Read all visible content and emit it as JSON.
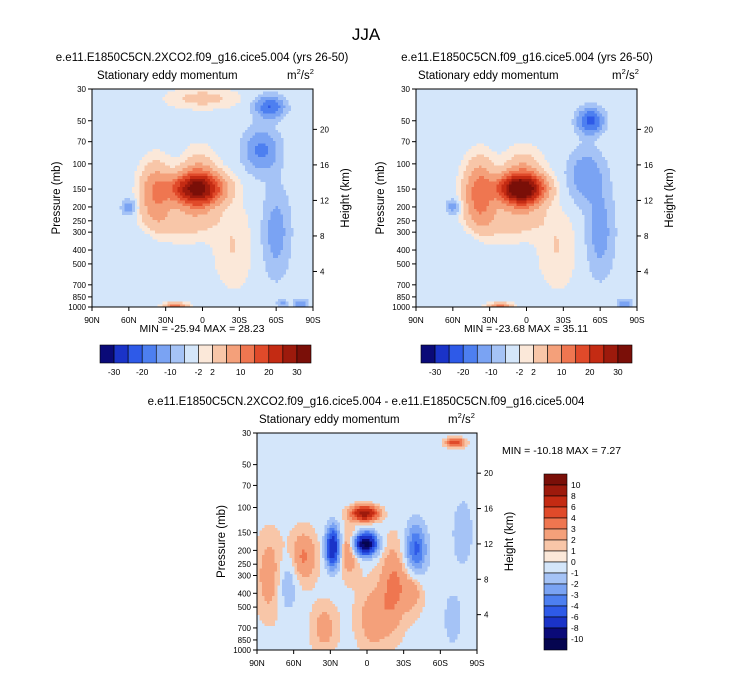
{
  "main_title": "JJA",
  "colors": {
    "field_bg": "#d4e6fa",
    "frame": "#000000"
  },
  "panels": [
    {
      "id": "p1",
      "title": "e.e11.E1850C5CN.2XCO2.f09_g16.cice5.004 (yrs 26-50)",
      "subtitle": "Stationary eddy momentum",
      "units_base": "m",
      "units_sup1": "2",
      "units_mid": "/s",
      "units_sup2": "2",
      "stats": "MIN = -25.94  MAX =  28.23"
    },
    {
      "id": "p2",
      "title": "e.e11.E1850C5CN.f09_g16.cice5.004 (yrs 26-50)",
      "subtitle": "Stationary eddy momentum",
      "units_base": "m",
      "units_sup1": "2",
      "units_mid": "/s",
      "units_sup2": "2",
      "stats": "MIN = -23.68  MAX =  35.11"
    },
    {
      "id": "p3",
      "title": "e.e11.E1850C5CN.2XCO2.f09_g16.cice5.004 - e.e11.E1850C5CN.f09_g16.cice5.004",
      "subtitle": "Stationary eddy momentum",
      "units_base": "m",
      "units_sup1": "2",
      "units_mid": "/s",
      "units_sup2": "2",
      "stats": "MIN = -10.18  MAX =   7.27"
    }
  ],
  "chart_data": {
    "type": "heatmap",
    "x_ticks": [
      "90N",
      "60N",
      "30N",
      "0",
      "30S",
      "60S",
      "90S"
    ],
    "x_tick_values": [
      90,
      60,
      30,
      0,
      -30,
      -60,
      -90
    ],
    "y_label": "Pressure (mb)",
    "y_ticks": [
      "30",
      "50",
      "70",
      "100",
      "150",
      "200",
      "250",
      "300",
      "400",
      "500",
      "700",
      "850",
      "1000"
    ],
    "y_tick_values": [
      30,
      50,
      70,
      100,
      150,
      200,
      250,
      300,
      400,
      500,
      700,
      850,
      1000
    ],
    "y2_label": "Height (km)",
    "y2_ticks": [
      "20",
      "16",
      "12",
      "8",
      "4"
    ],
    "y2_tick_values": [
      20,
      16,
      12,
      8,
      4
    ],
    "scale_height_km": 7,
    "colorbar_horizontal": {
      "labels": [
        "-30",
        "-20",
        "-10",
        "-2",
        "2",
        "10",
        "20",
        "30"
      ],
      "colors": [
        "#0a0a78",
        "#1a33c8",
        "#2e5ae8",
        "#4d7ff0",
        "#7aa3f3",
        "#a5c3f6",
        "#d4e6fa",
        "#fbe8d9",
        "#f8c6a8",
        "#f4a07a",
        "#ef7650",
        "#e04a2a",
        "#c42b13",
        "#9d1a0c",
        "#7a0f08"
      ]
    },
    "colorbar_vertical": {
      "labels": [
        "10",
        "8",
        "6",
        "4",
        "3",
        "2",
        "1",
        "0",
        "-1",
        "-2",
        "-3",
        "-4",
        "-6",
        "-8",
        "-10"
      ],
      "colors": [
        "#7a0f08",
        "#9d1a0c",
        "#c42b13",
        "#e04a2a",
        "#ef7650",
        "#f4a07a",
        "#f8c6a8",
        "#fbe8d9",
        "#d4e6fa",
        "#a5c3f6",
        "#7aa3f3",
        "#4d7ff0",
        "#2e5ae8",
        "#1a33c8",
        "#0a0a78",
        "#050550"
      ]
    },
    "features": {
      "p1": [
        {
          "lat": 5,
          "p": 150,
          "amp": 28,
          "wlat": 14,
          "wlogp": 0.16
        },
        {
          "lat": 3,
          "p": 140,
          "amp": 8,
          "wlat": 9,
          "wlogp": 0.3
        },
        {
          "lat": 38,
          "p": 160,
          "amp": 9,
          "wlat": 8,
          "wlogp": 0.3
        },
        {
          "lat": 22,
          "p": 1000,
          "amp": 13,
          "wlat": 6,
          "wlogp": 0.04
        },
        {
          "lat": 20,
          "p": 250,
          "amp": 3,
          "wlat": 25,
          "wlogp": 0.2
        },
        {
          "lat": 0,
          "p": 35,
          "amp": 3,
          "wlat": 18,
          "wlogp": 0.1
        },
        {
          "lat": -48,
          "p": 80,
          "amp": -10,
          "wlat": 10,
          "wlogp": 0.25
        },
        {
          "lat": -55,
          "p": 40,
          "amp": -14,
          "wlat": 8,
          "wlogp": 0.12
        },
        {
          "lat": -60,
          "p": 300,
          "amp": -7,
          "wlat": 8,
          "wlogp": 0.5
        },
        {
          "lat": 60,
          "p": 200,
          "amp": -8,
          "wlat": 4,
          "wlogp": 0.08
        },
        {
          "lat": 56,
          "p": 400,
          "amp": -2,
          "wlat": 12,
          "wlogp": 0.4
        },
        {
          "lat": -80,
          "p": 950,
          "amp": -8,
          "wlat": 4,
          "wlogp": 0.06
        },
        {
          "lat": -65,
          "p": 950,
          "amp": -6,
          "wlat": 3,
          "wlogp": 0.04
        },
        {
          "lat": -25,
          "p": 400,
          "amp": 2,
          "wlat": 10,
          "wlogp": 0.4
        }
      ],
      "p2": [
        {
          "lat": 5,
          "p": 150,
          "amp": 35,
          "wlat": 12,
          "wlogp": 0.15
        },
        {
          "lat": 3,
          "p": 140,
          "amp": 8,
          "wlat": 10,
          "wlogp": 0.3
        },
        {
          "lat": 38,
          "p": 160,
          "amp": 12,
          "wlat": 8,
          "wlogp": 0.32
        },
        {
          "lat": 22,
          "p": 1000,
          "amp": 12,
          "wlat": 6,
          "wlogp": 0.04
        },
        {
          "lat": 20,
          "p": 250,
          "amp": 3,
          "wlat": 25,
          "wlogp": 0.2
        },
        {
          "lat": -52,
          "p": 50,
          "amp": -16,
          "wlat": 7,
          "wlogp": 0.14
        },
        {
          "lat": -48,
          "p": 120,
          "amp": -8,
          "wlat": 10,
          "wlogp": 0.3
        },
        {
          "lat": -60,
          "p": 300,
          "amp": -7,
          "wlat": 8,
          "wlogp": 0.5
        },
        {
          "lat": 60,
          "p": 200,
          "amp": -7,
          "wlat": 4,
          "wlogp": 0.08
        },
        {
          "lat": 56,
          "p": 400,
          "amp": -2,
          "wlat": 12,
          "wlogp": 0.4
        },
        {
          "lat": -80,
          "p": 950,
          "amp": -8,
          "wlat": 4,
          "wlogp": 0.06
        },
        {
          "lat": -25,
          "p": 400,
          "amp": 2,
          "wlat": 10,
          "wlogp": 0.4
        }
      ],
      "p3": [
        {
          "lat": 1,
          "p": 180,
          "amp": -10,
          "wlat": 6,
          "wlogp": 0.12
        },
        {
          "lat": 2,
          "p": 110,
          "amp": 6,
          "wlat": 7,
          "wlogp": 0.08
        },
        {
          "lat": 28,
          "p": 190,
          "amp": -7,
          "wlat": 4,
          "wlogp": 0.22
        },
        {
          "lat": 15,
          "p": 200,
          "amp": 1.5,
          "wlat": 6,
          "wlogp": 0.3
        },
        {
          "lat": -22,
          "p": 350,
          "amp": 1.6,
          "wlat": 8,
          "wlogp": 0.5
        },
        {
          "lat": -40,
          "p": 200,
          "amp": -4,
          "wlat": 6,
          "wlogp": 0.3
        },
        {
          "lat": -38,
          "p": 350,
          "amp": 1.4,
          "wlat": 6,
          "wlogp": 0.3
        },
        {
          "lat": 52,
          "p": 220,
          "amp": 1.6,
          "wlat": 8,
          "wlogp": 0.3
        },
        {
          "lat": 65,
          "p": 350,
          "amp": -1.5,
          "wlat": 5,
          "wlogp": 0.3
        },
        {
          "lat": -72,
          "p": 35,
          "amp": 3.5,
          "wlat": 5,
          "wlogp": 0.05
        },
        {
          "lat": -78,
          "p": 150,
          "amp": -1.3,
          "wlat": 6,
          "wlogp": 0.4
        },
        {
          "lat": -70,
          "p": 600,
          "amp": -1.3,
          "wlat": 5,
          "wlogp": 0.3
        },
        {
          "lat": 80,
          "p": 300,
          "amp": 1.2,
          "wlat": 8,
          "wlogp": 0.5
        },
        {
          "lat": -5,
          "p": 600,
          "amp": 1.2,
          "wlat": 10,
          "wlogp": 0.4
        },
        {
          "lat": 35,
          "p": 700,
          "amp": 1.1,
          "wlat": 8,
          "wlogp": 0.3
        }
      ]
    }
  }
}
